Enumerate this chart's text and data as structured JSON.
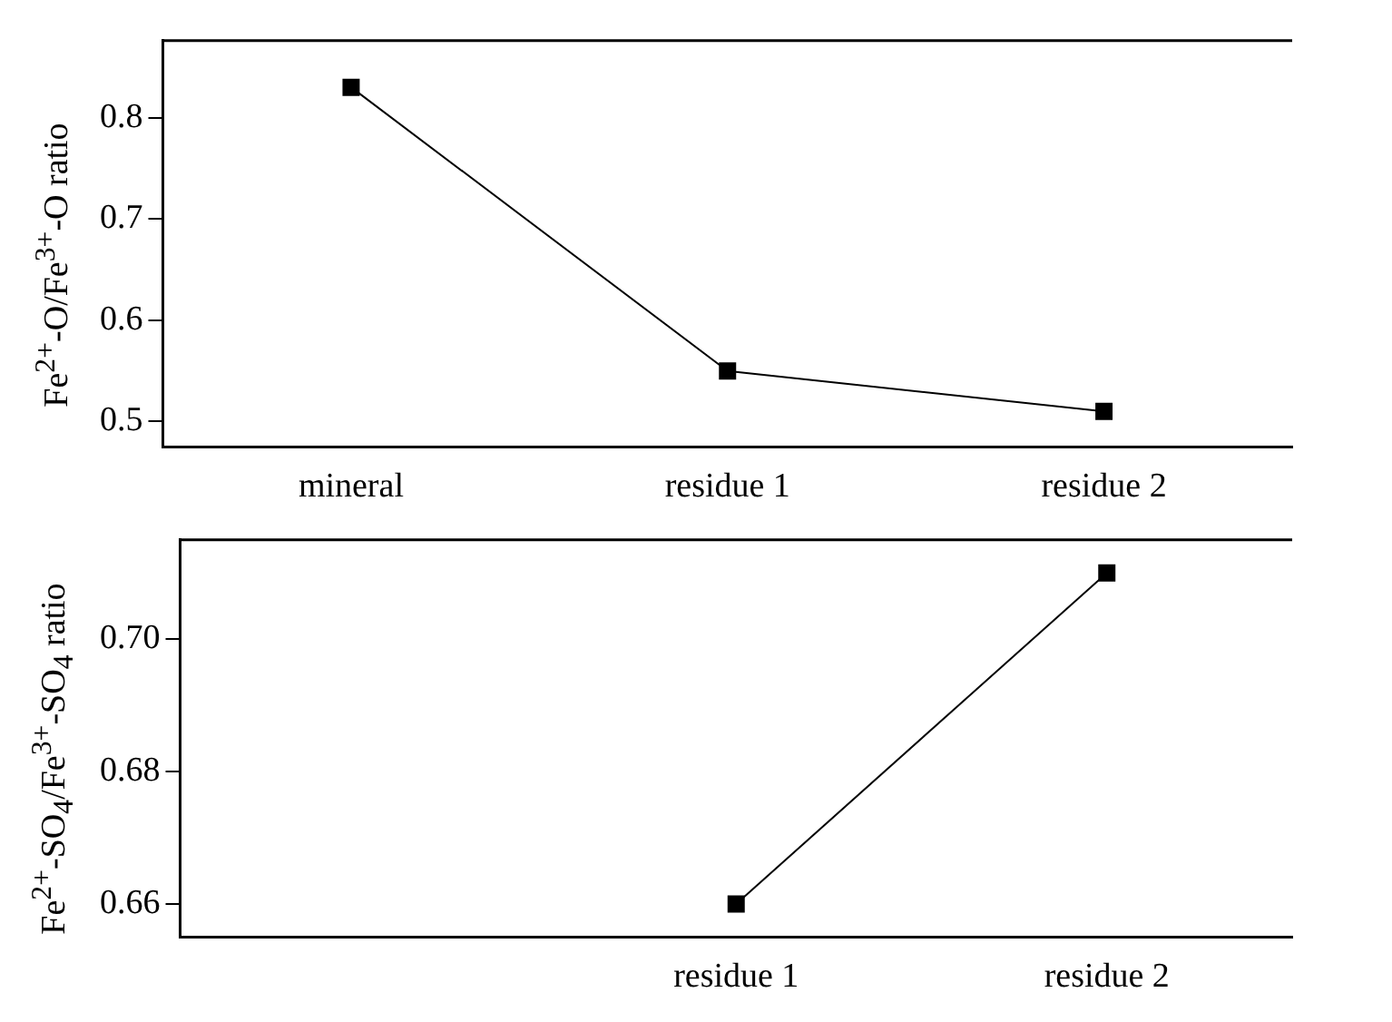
{
  "chart_data": [
    {
      "type": "line",
      "ylabel": "Fe$^{2+}$-O/Fe$^{3+}$-O ratio",
      "categories": [
        "mineral",
        "residue 1",
        "residue 2"
      ],
      "series": [
        {
          "color": "#000000",
          "values": [
            0.83,
            0.55,
            0.51
          ]
        }
      ],
      "ylim": [
        0.475,
        0.876
      ],
      "yticks": [
        0.5,
        0.6,
        0.7,
        0.8
      ],
      "marker": "square",
      "line_style": "solid",
      "grid": false,
      "legend": false
    },
    {
      "type": "line",
      "ylabel": "Fe$^{2+}$-SO$_{4}$/Fe$^{3+}$-SO$_{4}$ ratio",
      "categories": [
        null,
        "residue 1",
        "residue 2"
      ],
      "series": [
        {
          "color": "#000000",
          "values": [
            null,
            0.66,
            0.71
          ]
        }
      ],
      "ylim": [
        0.655,
        0.715
      ],
      "yticks": [
        {
          "value": 0.66,
          "label": "0.66"
        },
        {
          "value": 0.68,
          "label": "0.68"
        },
        {
          "value": 0.7,
          "label": "0.70"
        }
      ],
      "marker": "square",
      "line_style": "solid",
      "grid": false,
      "legend": false
    }
  ]
}
